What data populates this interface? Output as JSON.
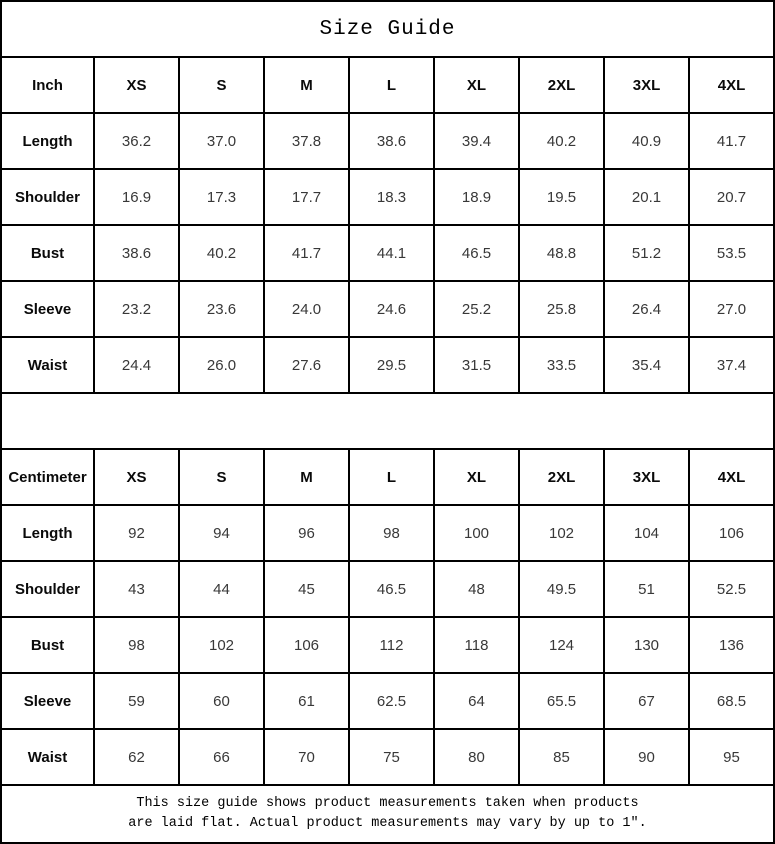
{
  "title": "Size Guide",
  "colors": {
    "border": "#000000",
    "heading_text": "#000000",
    "value_text": "#383838",
    "background": "#ffffff"
  },
  "tables": [
    {
      "unit_label": "Inch",
      "sizes": [
        "XS",
        "S",
        "M",
        "L",
        "XL",
        "2XL",
        "3XL",
        "4XL"
      ],
      "rows": [
        {
          "label": "Length",
          "values": [
            "36.2",
            "37.0",
            "37.8",
            "38.6",
            "39.4",
            "40.2",
            "40.9",
            "41.7"
          ]
        },
        {
          "label": "Shoulder",
          "values": [
            "16.9",
            "17.3",
            "17.7",
            "18.3",
            "18.9",
            "19.5",
            "20.1",
            "20.7"
          ]
        },
        {
          "label": "Bust",
          "values": [
            "38.6",
            "40.2",
            "41.7",
            "44.1",
            "46.5",
            "48.8",
            "51.2",
            "53.5"
          ]
        },
        {
          "label": "Sleeve",
          "values": [
            "23.2",
            "23.6",
            "24.0",
            "24.6",
            "25.2",
            "25.8",
            "26.4",
            "27.0"
          ]
        },
        {
          "label": "Waist",
          "values": [
            "24.4",
            "26.0",
            "27.6",
            "29.5",
            "31.5",
            "33.5",
            "35.4",
            "37.4"
          ]
        }
      ]
    },
    {
      "unit_label": "Centimeter",
      "sizes": [
        "XS",
        "S",
        "M",
        "L",
        "XL",
        "2XL",
        "3XL",
        "4XL"
      ],
      "rows": [
        {
          "label": "Length",
          "values": [
            "92",
            "94",
            "96",
            "98",
            "100",
            "102",
            "104",
            "106"
          ]
        },
        {
          "label": "Shoulder",
          "values": [
            "43",
            "44",
            "45",
            "46.5",
            "48",
            "49.5",
            "51",
            "52.5"
          ]
        },
        {
          "label": "Bust",
          "values": [
            "98",
            "102",
            "106",
            "112",
            "118",
            "124",
            "130",
            "136"
          ]
        },
        {
          "label": "Sleeve",
          "values": [
            "59",
            "60",
            "61",
            "62.5",
            "64",
            "65.5",
            "67",
            "68.5"
          ]
        },
        {
          "label": "Waist",
          "values": [
            "62",
            "66",
            "70",
            "75",
            "80",
            "85",
            "90",
            "95"
          ]
        }
      ]
    }
  ],
  "footer": {
    "line1": "This size guide shows product measurements taken when products",
    "line2": "are laid flat. Actual product measurements may vary by up to 1″."
  }
}
